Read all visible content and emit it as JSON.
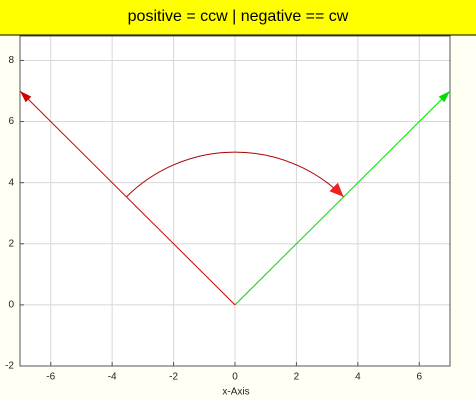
{
  "chart_data": {
    "type": "vector",
    "title": "positive = ccw | negative == cw",
    "xlabel": "x-Axis",
    "xlim": [
      -7,
      7
    ],
    "ylim": [
      -2,
      8.8
    ],
    "xticks": [
      -6,
      -4,
      -2,
      0,
      2,
      4,
      6
    ],
    "yticks": [
      -2,
      0,
      2,
      4,
      6,
      8
    ],
    "grid": true,
    "vectors": [
      {
        "x": [
          0,
          7
        ],
        "y": [
          0,
          7
        ],
        "color": "#00dd00"
      },
      {
        "x": [
          0,
          -7
        ],
        "y": [
          0,
          7
        ],
        "color": "#cc0000"
      }
    ],
    "arc": {
      "radius": 5,
      "from_angle": 135,
      "to_angle": 45,
      "color": "#aa0000",
      "head_color": "#ee2222"
    }
  }
}
